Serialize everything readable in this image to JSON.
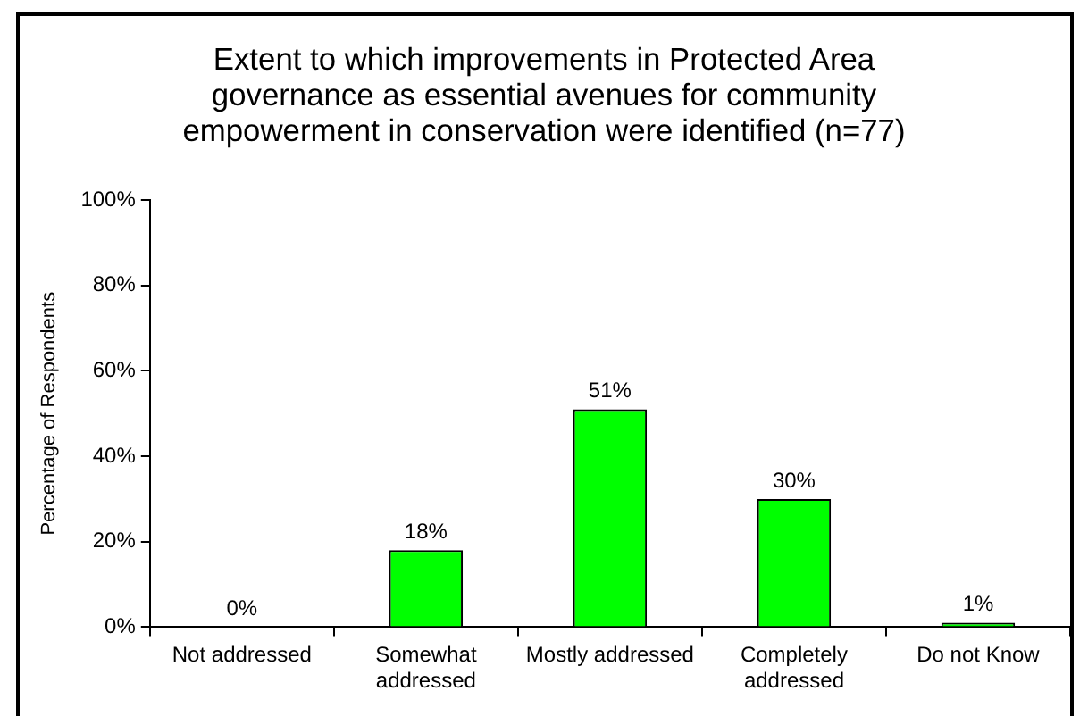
{
  "chart_data": {
    "type": "bar",
    "title": "Extent to which improvements in Protected Area governance as essential avenues for community empowerment in conservation were identified (n=77)",
    "ylabel": "Percentage of Respondents",
    "categories": [
      "Not addressed",
      "Somewhat addressed",
      "Mostly addressed",
      "Completely addressed",
      "Do not Know"
    ],
    "values": [
      0,
      18,
      51,
      30,
      1
    ],
    "value_labels": [
      "0%",
      "18%",
      "51%",
      "30%",
      "1%"
    ],
    "color": "#00ff00",
    "ylim": [
      0,
      100
    ],
    "yticks": [
      {
        "value": 0,
        "label": "0%"
      },
      {
        "value": 20,
        "label": "20%"
      },
      {
        "value": 40,
        "label": "40%"
      },
      {
        "value": 60,
        "label": "60%"
      },
      {
        "value": 80,
        "label": "80%"
      },
      {
        "value": 100,
        "label": "100%"
      }
    ],
    "grid": false,
    "legend": false
  }
}
